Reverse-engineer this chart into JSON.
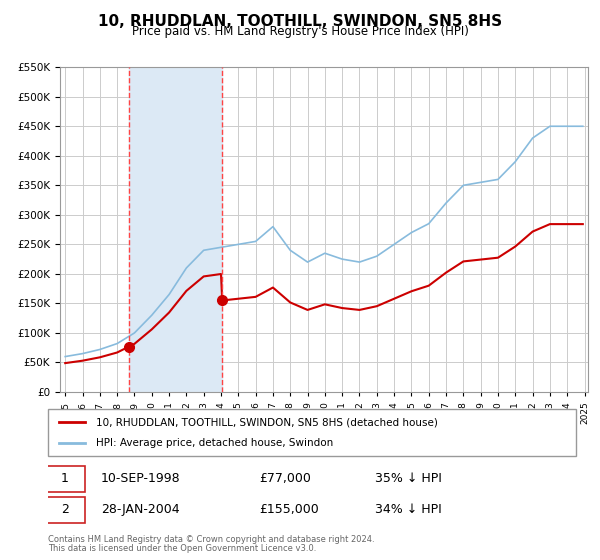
{
  "title": "10, RHUDDLAN, TOOTHILL, SWINDON, SN5 8HS",
  "subtitle": "Price paid vs. HM Land Registry's House Price Index (HPI)",
  "legend_label_red": "10, RHUDDLAN, TOOTHILL, SWINDON, SN5 8HS (detached house)",
  "legend_label_blue": "HPI: Average price, detached house, Swindon",
  "table_row1": [
    "1",
    "10-SEP-1998",
    "£77,000",
    "35% ↓ HPI"
  ],
  "table_row2": [
    "2",
    "28-JAN-2004",
    "£155,000",
    "34% ↓ HPI"
  ],
  "footer_line1": "Contains HM Land Registry data © Crown copyright and database right 2024.",
  "footer_line2": "This data is licensed under the Open Government Licence v3.0.",
  "sale1_x": 1998.69,
  "sale1_y": 77000,
  "sale2_x": 2004.07,
  "sale2_y": 155000,
  "vline1_x": 1998.69,
  "vline2_x": 2004.07,
  "shade_start": 1998.69,
  "shade_end": 2004.07,
  "ylim": [
    0,
    550000
  ],
  "xlim_start": 1995,
  "xlim_end": 2025,
  "background_color": "#ffffff",
  "grid_color": "#cccccc",
  "shade_color": "#dce9f5",
  "vline_color": "#ff4444",
  "red_line_color": "#cc0000",
  "blue_line_color": "#88bbdd"
}
